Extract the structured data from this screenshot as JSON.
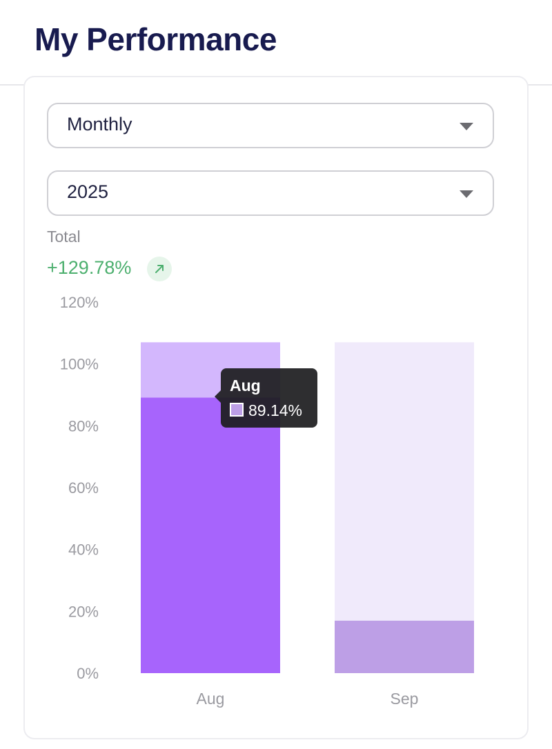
{
  "header": {
    "title": "My Performance"
  },
  "filters": {
    "period": {
      "selected": "Monthly"
    },
    "year": {
      "selected": "2025"
    }
  },
  "summary": {
    "total_label": "Total",
    "total_value": "+129.78%",
    "trend_icon": "arrow-up-right-icon"
  },
  "tooltip": {
    "title": "Aug",
    "value": "89.14%",
    "swatch_color": "#bd9fe6"
  },
  "colors": {
    "title": "#181b4f",
    "positive": "#4caf6e",
    "primary_bar": "#a764fc",
    "aug_remainder": "#d3b7fd",
    "sep_bar": "#bd9fe6",
    "sep_remainder": "#f0eafb"
  },
  "chart_data": {
    "type": "bar",
    "stacked": true,
    "categories": [
      "Aug",
      "Sep"
    ],
    "series": [
      {
        "values": [
          89.14,
          17
        ],
        "colors": [
          "#a764fc",
          "#bd9fe6"
        ]
      },
      {
        "values": [
          17.86,
          90
        ],
        "colors": [
          "#d3b7fd",
          "#f0eafb"
        ]
      }
    ],
    "ylim": [
      0,
      120
    ],
    "yticks": [
      0,
      20,
      40,
      60,
      80,
      100,
      120
    ],
    "ytick_labels": [
      "0%",
      "20%",
      "40%",
      "60%",
      "80%",
      "100%",
      "120%"
    ],
    "grid": false,
    "legend": "none",
    "xlabel": "",
    "ylabel": ""
  }
}
